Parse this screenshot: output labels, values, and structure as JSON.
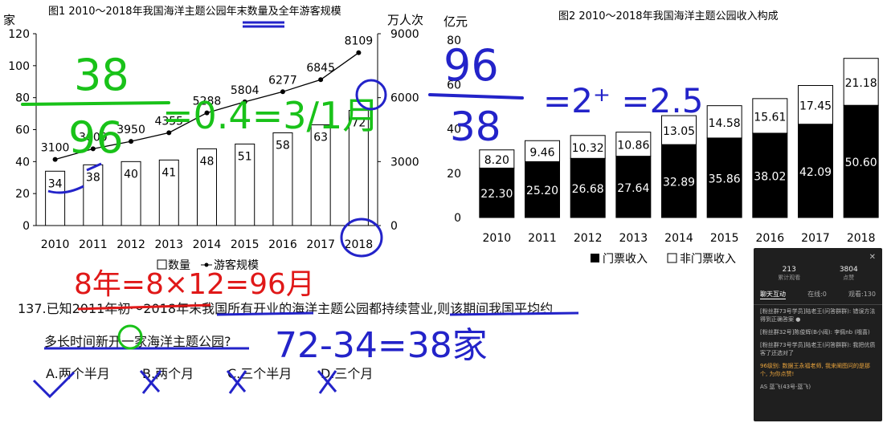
{
  "chart_data": [
    {
      "type": "bar",
      "title": "图1 2010～2018年我国海洋主题公园年末数量及全年游客规模",
      "categories": [
        "2010",
        "2011",
        "2012",
        "2013",
        "2014",
        "2015",
        "2016",
        "2017",
        "2018"
      ],
      "series": [
        {
          "name": "数量",
          "type": "bar",
          "axis": "left",
          "values": [
            34,
            38,
            40,
            41,
            48,
            51,
            58,
            63,
            72
          ]
        },
        {
          "name": "游客规模",
          "type": "line",
          "axis": "right",
          "values": [
            3100,
            3600,
            3950,
            4355,
            5288,
            5804,
            6277,
            6845,
            8109
          ]
        }
      ],
      "ylabel_left": "家",
      "ylabel_right": "万人次",
      "ylim_left": [
        0,
        120
      ],
      "yticks_left": [
        "0",
        "20",
        "40",
        "60",
        "80",
        "100",
        "120"
      ],
      "ylim_right": [
        0,
        9000
      ],
      "yticks_right": [
        "0",
        "3000",
        "6000",
        "9000"
      ],
      "legend": [
        "数量",
        "游客规模"
      ],
      "legend_position": "bottom"
    },
    {
      "type": "bar",
      "stacked": true,
      "title": "图2 2010～2018年我国海洋主题公园收入构成",
      "categories": [
        "2010",
        "2011",
        "2012",
        "2013",
        "2014",
        "2015",
        "2016",
        "2017",
        "2018"
      ],
      "series": [
        {
          "name": "门票收入",
          "color": "#000000",
          "values": [
            22.3,
            25.2,
            26.68,
            27.64,
            32.89,
            35.86,
            38.02,
            42.09,
            50.6
          ]
        },
        {
          "name": "非门票收入",
          "color": "#ffffff",
          "values": [
            8.2,
            9.46,
            10.32,
            10.86,
            13.05,
            14.58,
            15.61,
            17.45,
            21.18
          ]
        }
      ],
      "ylabel": "亿元",
      "ylim": [
        0,
        80
      ],
      "yticks": [
        "0",
        "20",
        "40",
        "60",
        "80"
      ],
      "legend": [
        "门票收入",
        "非门票收入"
      ],
      "legend_position": "bottom-right"
    }
  ],
  "question": {
    "stem_line1": "137.已知2011年初～2018年末我国所有开业的海洋主题公园都持续营业,则该期间我国平均约",
    "stem_line2": "多长时间新开一家海洋主题公园?",
    "options": [
      "A.两个半月",
      "B.两个月",
      "C.三个半月",
      "D.三个月"
    ]
  },
  "handwriting": {
    "frac_num": "38",
    "frac_den": "96",
    "approx": "=0.4=3/1月",
    "approx2": "=2⁺ =2.5",
    "frac2_num": "96",
    "frac2_den": "38",
    "months": "8年=8×12=96月",
    "diff": "72-34=38家"
  },
  "chat": {
    "stat1_value": "213",
    "stat1_label": "累计观看",
    "stat2_value": "3804",
    "stat2_label": "点赞",
    "tabs": [
      "聊天互动",
      "在线:0",
      "观看:130"
    ],
    "messages": [
      "[粉丝群73号学员]陆老王(问答群群): 错误方法得到正确答案 ●",
      "[粉丝群32号]陈俊辉(B小阈): 李佩nb (哦喜)",
      "[粉丝群73号学员]陆老王(问答群群): 我把优质客了还选对了",
      "96级别: 数据王永福老师, 我来阐图问的是那个, 为你点赞!"
    ],
    "footer": "AS 蓝飞(43号·蓝飞)"
  }
}
